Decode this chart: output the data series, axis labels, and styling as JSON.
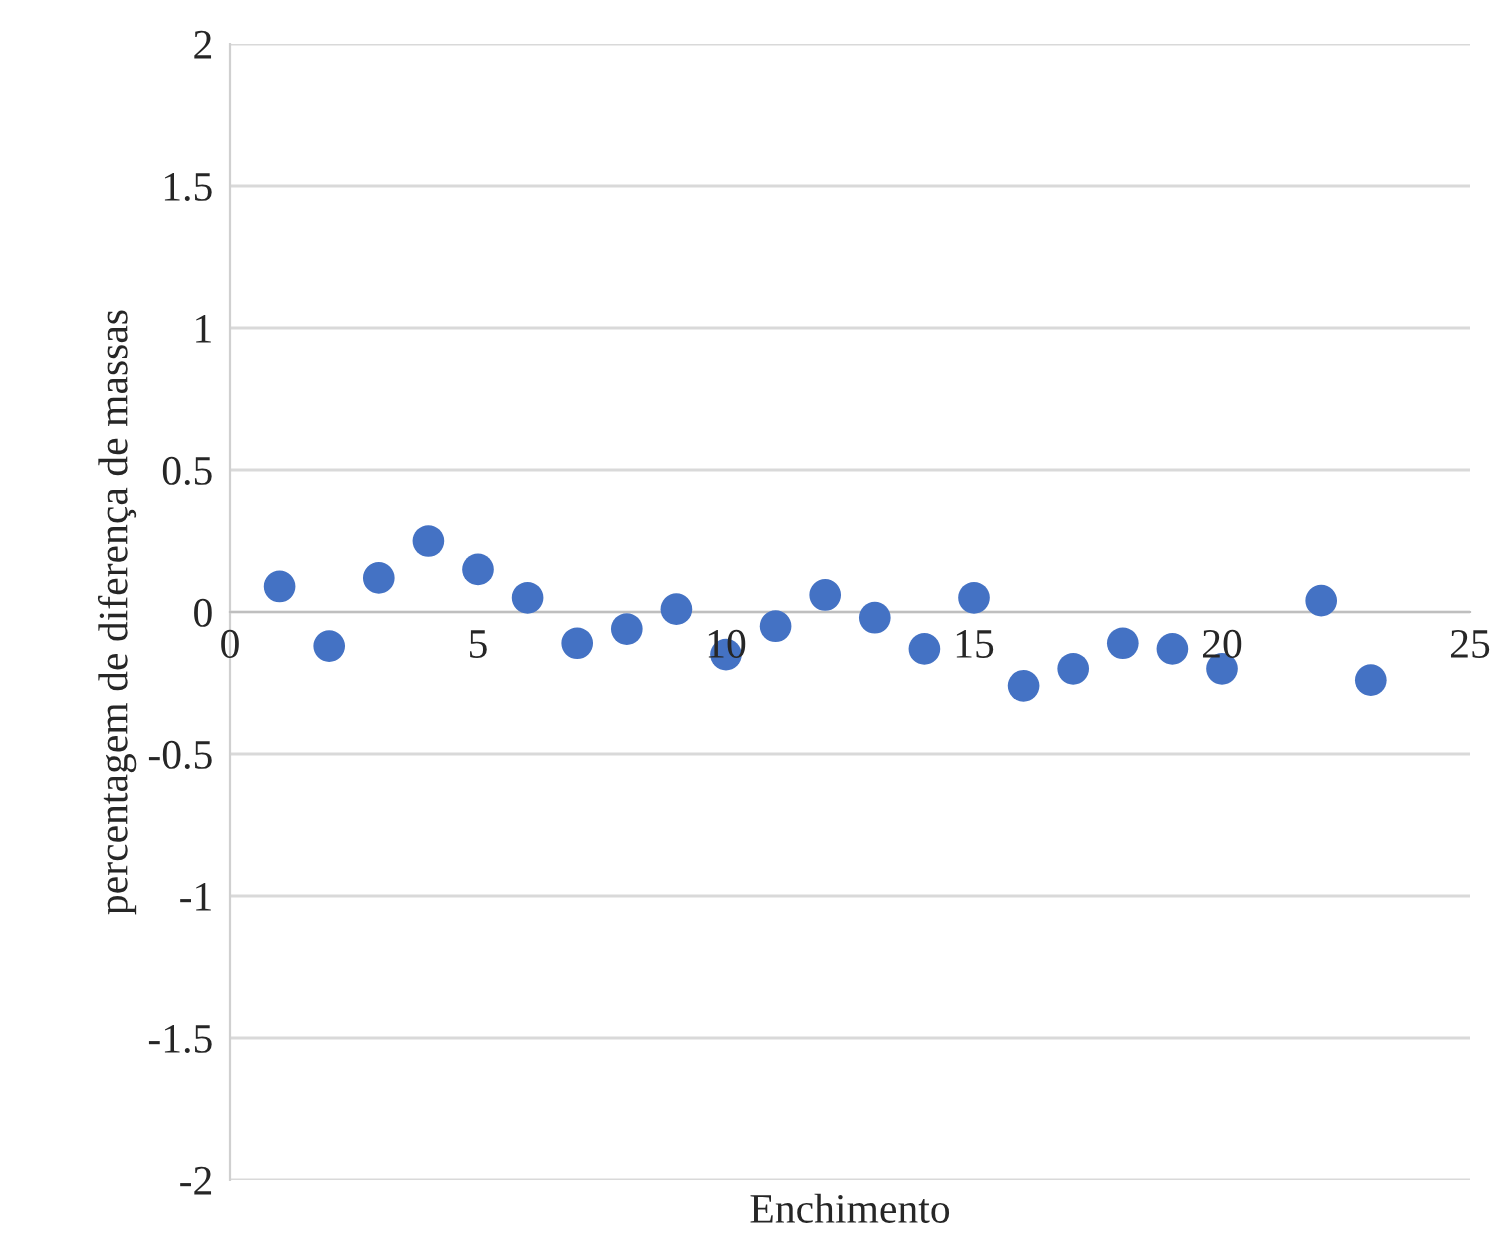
{
  "chart_data": {
    "type": "scatter",
    "xlabel": "Enchimento",
    "ylabel": "percentagem de diferença de massas",
    "x": [
      1,
      2,
      3,
      4,
      5,
      6,
      7,
      8,
      9,
      10,
      11,
      12,
      13,
      14,
      15,
      16,
      17,
      18,
      19,
      20,
      22,
      23
    ],
    "series": [
      {
        "color": "#4472c4",
        "values": [
          0.09,
          -0.12,
          0.12,
          0.25,
          0.15,
          0.05,
          -0.11,
          -0.06,
          0.01,
          -0.15,
          -0.05,
          0.06,
          -0.02,
          -0.13,
          0.05,
          -0.26,
          -0.2,
          -0.11,
          -0.13,
          -0.2,
          0.04,
          -0.24
        ]
      }
    ],
    "xlim": [
      0,
      25
    ],
    "xticks": [
      0,
      5,
      10,
      15,
      20,
      25
    ],
    "ylim": [
      -2,
      2
    ],
    "yticks": [
      -2,
      -1.5,
      -1,
      -0.5,
      0,
      0.5,
      1,
      1.5,
      2
    ],
    "grid": "y",
    "marker": "circle",
    "legend": false
  }
}
